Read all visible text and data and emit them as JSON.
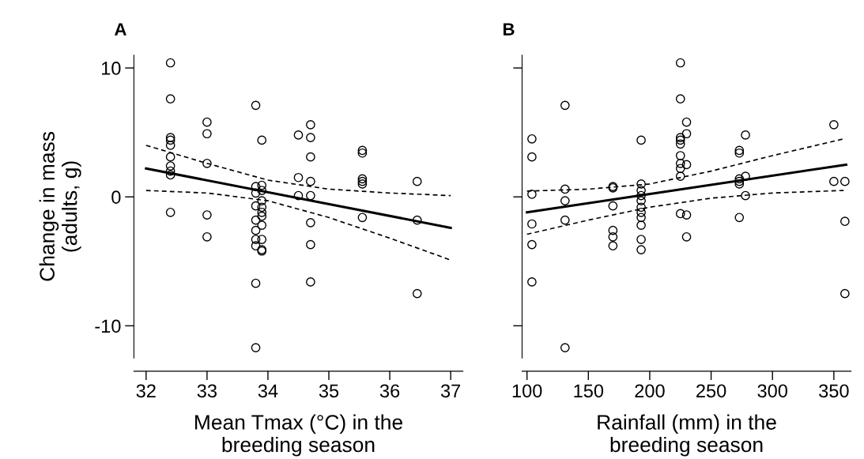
{
  "chart_data": [
    {
      "type": "scatter",
      "title": "A",
      "xlabel": "Mean Tmax (°C) in the\nbreeding season",
      "ylabel": "Change in mass\n(adults, g)",
      "xlim": [
        31.8,
        37.2
      ],
      "xticks": [
        32,
        33,
        34,
        35,
        36,
        37
      ],
      "ylim": [
        -12.5,
        11
      ],
      "yticks": [
        -10,
        0,
        10
      ],
      "grid": false,
      "series": [
        {
          "marker": "circle",
          "color": "#000000",
          "x": [
            32.4,
            32.4,
            32.4,
            32.4,
            32.4,
            32.4,
            32.4,
            32.4,
            32.4,
            32.4,
            33.0,
            33.0,
            33.0,
            33.0,
            33.0,
            33.8,
            33.8,
            33.8,
            33.8,
            33.8,
            33.8,
            33.8,
            33.8,
            33.8,
            33.8,
            33.9,
            33.9,
            33.9,
            33.9,
            33.9,
            33.9,
            33.9,
            33.9,
            33.9,
            33.9,
            33.9,
            34.5,
            34.5,
            34.5,
            34.7,
            34.7,
            34.7,
            34.7,
            34.7,
            34.7,
            34.7,
            34.7,
            35.55,
            35.55,
            35.55,
            35.55,
            35.55,
            35.55,
            36.45,
            36.45,
            36.45
          ],
          "values": [
            10.4,
            7.6,
            4.6,
            4.4,
            4.0,
            3.1,
            2.4,
            2.0,
            1.7,
            -1.2,
            5.8,
            4.9,
            2.6,
            -1.4,
            -3.1,
            7.1,
            0.8,
            0.3,
            -0.7,
            -1.8,
            -2.6,
            -3.3,
            -3.8,
            -6.7,
            -11.7,
            4.4,
            0.9,
            0.5,
            -0.3,
            -0.8,
            -1.2,
            -1.5,
            -2.2,
            -3.3,
            -4.1,
            -4.2,
            4.8,
            1.5,
            0.1,
            5.6,
            4.6,
            3.1,
            1.2,
            0.1,
            -2.0,
            -3.7,
            -6.6,
            3.6,
            3.4,
            1.4,
            1.2,
            1.0,
            -1.6,
            1.2,
            -1.8,
            -7.5
          ]
        },
        {
          "type": "line",
          "color": "#000000",
          "line_style": "solid",
          "x": [
            32,
            37
          ],
          "values": [
            2.2,
            -2.4
          ]
        },
        {
          "type": "line",
          "color": "#000000",
          "line_style": "dashed",
          "x": [
            32,
            33,
            34,
            35,
            36,
            37
          ],
          "values": [
            4.0,
            2.6,
            1.3,
            0.6,
            0.3,
            0.1
          ]
        },
        {
          "type": "line",
          "color": "#000000",
          "line_style": "dashed",
          "x": [
            32,
            33,
            34,
            35,
            36,
            37
          ],
          "values": [
            0.5,
            0.3,
            -0.3,
            -1.6,
            -3.2,
            -4.9
          ]
        }
      ]
    },
    {
      "type": "scatter",
      "title": "B",
      "xlabel": "Rainfall (mm) in the\nbreeding season",
      "xlim": [
        96,
        364
      ],
      "xticks": [
        100,
        150,
        200,
        250,
        300,
        350
      ],
      "ylim": [
        -12.5,
        11
      ],
      "yticks": [
        -10,
        0,
        10
      ],
      "tick_labels": "x",
      "grid": false,
      "series": [
        {
          "marker": "circle",
          "color": "#000000",
          "x": [
            104,
            104,
            104,
            104,
            104,
            104,
            131,
            131,
            131,
            131,
            131,
            170,
            170,
            170,
            170,
            170,
            170,
            193,
            193,
            193,
            193,
            193,
            193,
            193,
            193,
            193,
            193,
            193,
            225,
            225,
            225,
            225,
            225,
            225,
            225,
            225,
            225,
            225,
            230,
            230,
            230,
            230,
            230,
            273,
            273,
            273,
            273,
            273,
            273,
            278,
            278,
            278,
            350,
            350,
            359,
            359,
            359
          ],
          "values": [
            4.5,
            3.1,
            0.2,
            -2.1,
            -3.7,
            -6.6,
            7.1,
            0.6,
            -0.3,
            -1.8,
            -11.7,
            0.8,
            0.7,
            -0.7,
            -2.6,
            -3.1,
            -3.8,
            4.4,
            1.0,
            0.5,
            0.1,
            -0.3,
            -0.8,
            -1.2,
            -1.6,
            -2.2,
            -3.3,
            -4.1,
            10.4,
            7.6,
            4.6,
            4.4,
            4.1,
            3.2,
            2.6,
            2.2,
            1.6,
            -1.3,
            5.8,
            4.9,
            2.5,
            -1.4,
            -3.1,
            3.6,
            3.4,
            1.4,
            1.2,
            1.0,
            -1.6,
            4.8,
            1.6,
            0.1,
            5.6,
            1.2,
            1.2,
            -1.9,
            -7.5
          ]
        },
        {
          "type": "line",
          "color": "#000000",
          "line_style": "solid",
          "x": [
            100,
            360
          ],
          "values": [
            -1.2,
            2.5
          ]
        },
        {
          "type": "line",
          "color": "#000000",
          "line_style": "dashed",
          "x": [
            100,
            150,
            200,
            250,
            300,
            358
          ],
          "values": [
            0.45,
            0.6,
            1.0,
            2.0,
            3.2,
            4.5
          ]
        },
        {
          "type": "line",
          "color": "#000000",
          "line_style": "dashed",
          "x": [
            100,
            150,
            200,
            250,
            300,
            358
          ],
          "values": [
            -2.9,
            -1.8,
            -0.8,
            -0.1,
            0.3,
            0.5
          ]
        }
      ]
    }
  ]
}
